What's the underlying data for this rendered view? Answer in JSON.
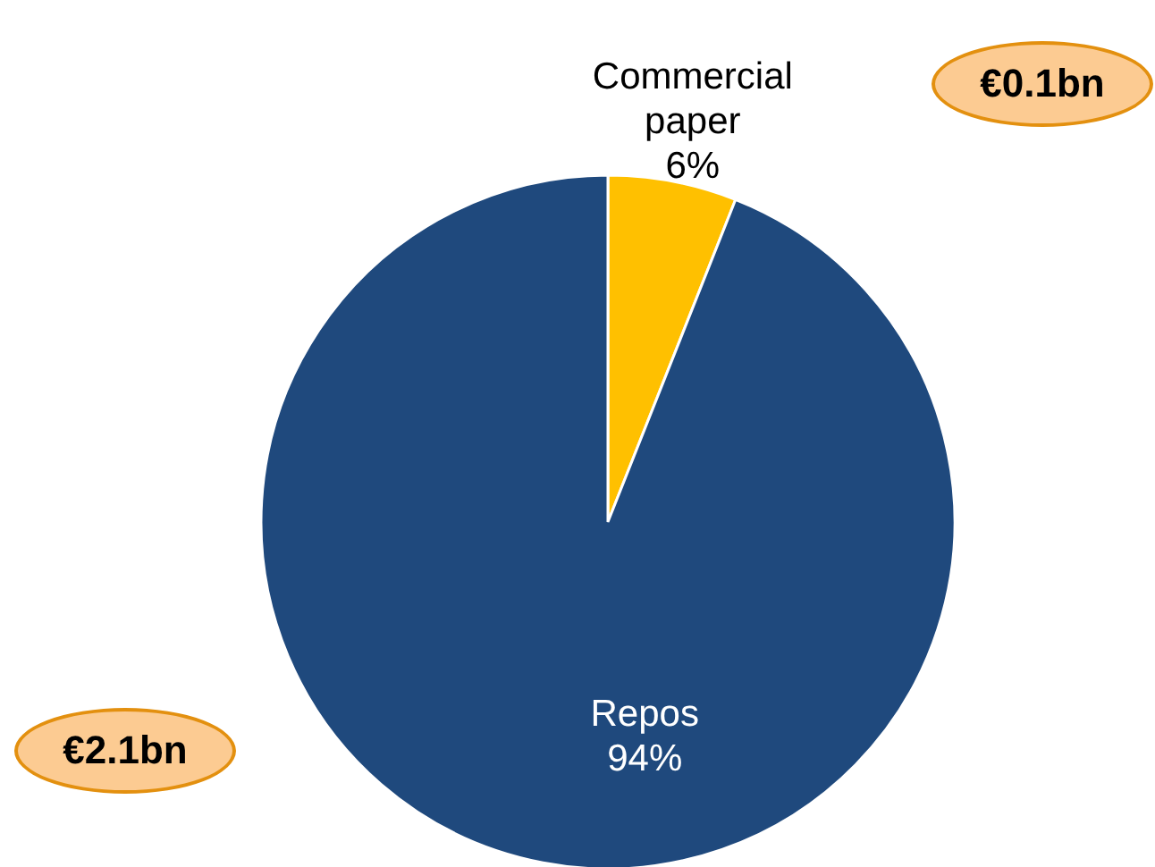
{
  "chart_data": {
    "type": "pie",
    "categories": [
      "Commercial paper",
      "Repos"
    ],
    "values": [
      6,
      94
    ],
    "value_labels": [
      "6%",
      "94%"
    ],
    "colors": [
      "#ffc000",
      "#1f497d"
    ],
    "annotations": [
      "€0.1bn",
      "€2.1bn"
    ]
  }
}
